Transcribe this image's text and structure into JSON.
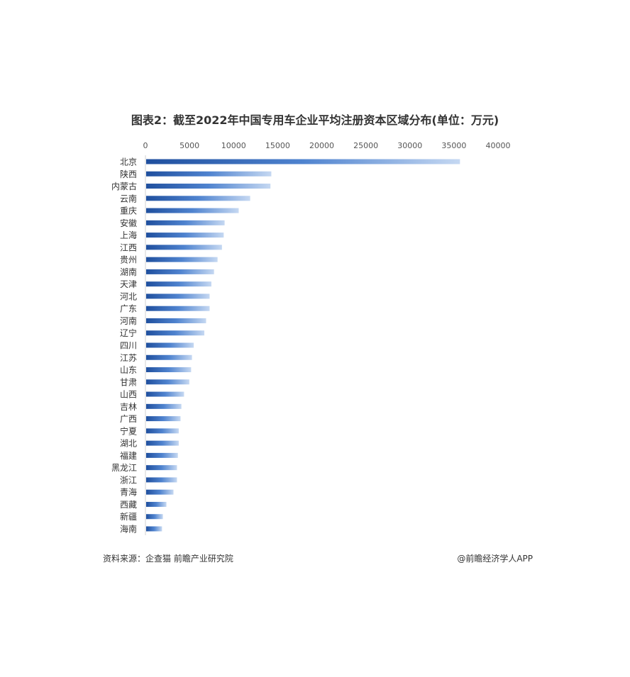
{
  "chart_data": {
    "type": "bar",
    "orientation": "horizontal",
    "title": "图表2：截至2022年中国专用车企业平均注册资本区域分布(单位：万元)",
    "xlim": [
      0,
      40000
    ],
    "xticks": [
      0,
      5000,
      10000,
      15000,
      20000,
      25000,
      30000,
      35000,
      40000
    ],
    "x_axis_position": "top",
    "grid": false,
    "bar_color": "#2f63b3",
    "categories": [
      "北京",
      "陕西",
      "内蒙古",
      "云南",
      "重庆",
      "安徽",
      "上海",
      "江西",
      "贵州",
      "湖南",
      "天津",
      "河北",
      "广东",
      "河南",
      "辽宁",
      "四川",
      "江苏",
      "山东",
      "甘肃",
      "山西",
      "吉林",
      "广西",
      "宁夏",
      "湖北",
      "福建",
      "黑龙江",
      "浙江",
      "青海",
      "西藏",
      "新疆",
      "海南"
    ],
    "values": [
      35600,
      14200,
      14100,
      11800,
      10500,
      8900,
      8800,
      8600,
      8100,
      7700,
      7400,
      7200,
      7200,
      6800,
      6600,
      5400,
      5200,
      5100,
      4900,
      4300,
      4000,
      3900,
      3700,
      3700,
      3600,
      3500,
      3500,
      3100,
      2300,
      1900,
      1800
    ]
  },
  "footer": {
    "source": "资料来源：企查猫 前瞻产业研究院",
    "credit": "@前瞻经济学人APP"
  },
  "watermark": "前瞻产业研究院"
}
